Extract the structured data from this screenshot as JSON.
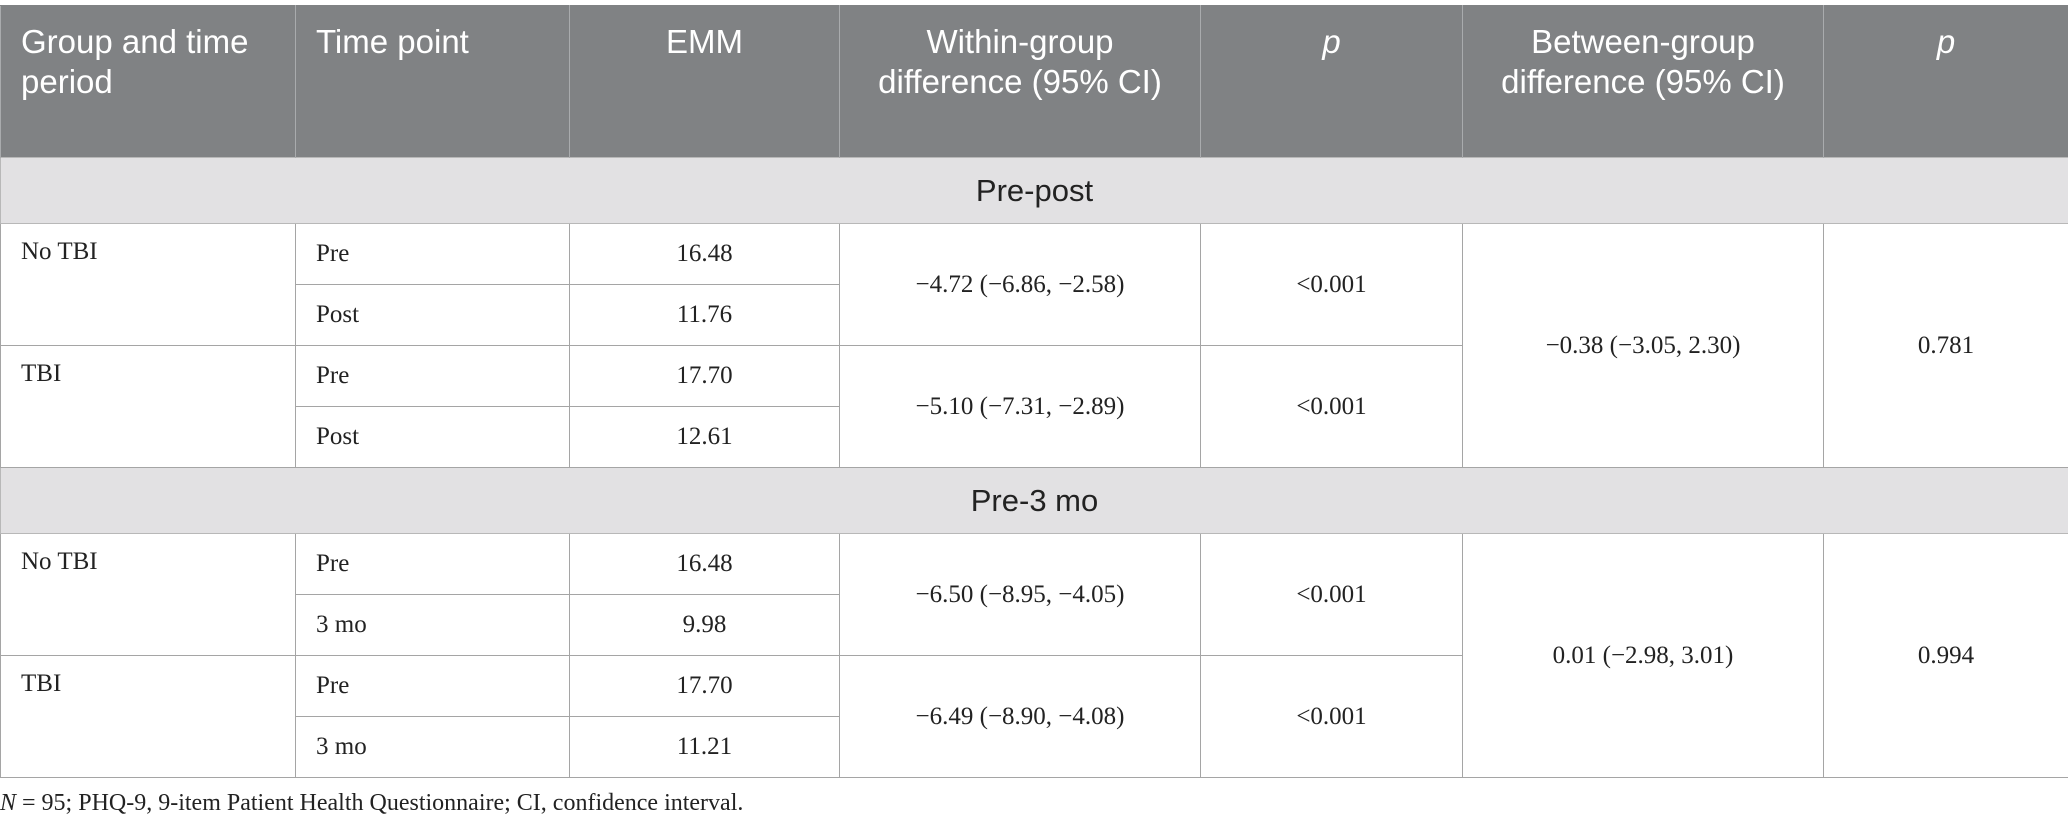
{
  "header": {
    "group": "Group and time period",
    "time_point": "Time point",
    "emm": "EMM",
    "within": "Within-group difference (95% CI)",
    "p1": "p",
    "between": "Between-group difference (95% CI)",
    "p2": "p"
  },
  "sections": [
    {
      "title": "Pre-post",
      "between_diff": "−0.38 (−3.05, 2.30)",
      "between_p": "0.781",
      "groups": [
        {
          "name": "No TBI",
          "within_diff": "−4.72 (−6.86, −2.58)",
          "within_p": "<0.001",
          "rows": [
            {
              "time_point": "Pre",
              "emm": "16.48"
            },
            {
              "time_point": "Post",
              "emm": "11.76"
            }
          ]
        },
        {
          "name": "TBI",
          "within_diff": "−5.10 (−7.31, −2.89)",
          "within_p": "<0.001",
          "rows": [
            {
              "time_point": "Pre",
              "emm": "17.70"
            },
            {
              "time_point": "Post",
              "emm": "12.61"
            }
          ]
        }
      ]
    },
    {
      "title": "Pre-3 mo",
      "between_diff": "0.01 (−2.98, 3.01)",
      "between_p": "0.994",
      "groups": [
        {
          "name": "No TBI",
          "within_diff": "−6.50 (−8.95, −4.05)",
          "within_p": "<0.001",
          "rows": [
            {
              "time_point": "Pre",
              "emm": "16.48"
            },
            {
              "time_point": "3 mo",
              "emm": "9.98"
            }
          ]
        },
        {
          "name": "TBI",
          "within_diff": "−6.49 (−8.90, −4.08)",
          "within_p": "<0.001",
          "rows": [
            {
              "time_point": "Pre",
              "emm": "17.70"
            },
            {
              "time_point": "3 mo",
              "emm": "11.21"
            }
          ]
        }
      ]
    }
  ],
  "footnote": {
    "n_label": "N",
    "text": " = 95; PHQ-9, 9-item Patient Health Questionnaire; CI, confidence interval."
  }
}
